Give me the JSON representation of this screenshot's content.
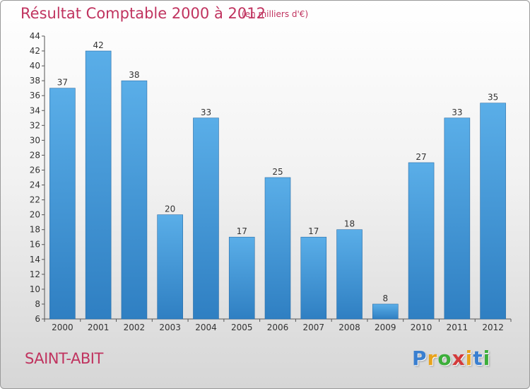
{
  "header": {
    "title": "Résultat Comptable 2000 à 2012",
    "subtitle": "(en milliers d'€)"
  },
  "footer": {
    "commune": "SAINT-ABIT",
    "logo_letters": [
      "P",
      "r",
      "o",
      "x",
      "i",
      "t",
      "i"
    ],
    "logo_colors": [
      "#3a7fd0",
      "#e8a21b",
      "#3cae3a",
      "#d33a3a",
      "#e8a21b",
      "#3a7fd0",
      "#3cae3a"
    ]
  },
  "colors": {
    "bar_top": "#5aaee8",
    "bar_bottom": "#2f7fc2",
    "text": "#333333",
    "grid": "#c8c8c8"
  },
  "chart_data": {
    "type": "bar",
    "title": "Résultat Comptable 2000 à 2012",
    "subtitle": "(en milliers d'€)",
    "categories": [
      "2000",
      "2001",
      "2002",
      "2003",
      "2004",
      "2005",
      "2006",
      "2007",
      "2008",
      "2009",
      "2010",
      "2011",
      "2012"
    ],
    "values": [
      37,
      42,
      38,
      20,
      33,
      17,
      25,
      17,
      18,
      8,
      27,
      33,
      35
    ],
    "ylim": [
      6,
      44
    ],
    "yticks": [
      6,
      8,
      10,
      12,
      14,
      16,
      18,
      20,
      22,
      24,
      26,
      28,
      30,
      32,
      34,
      36,
      38,
      40,
      42,
      44
    ],
    "data_labels": true,
    "grid": false
  }
}
